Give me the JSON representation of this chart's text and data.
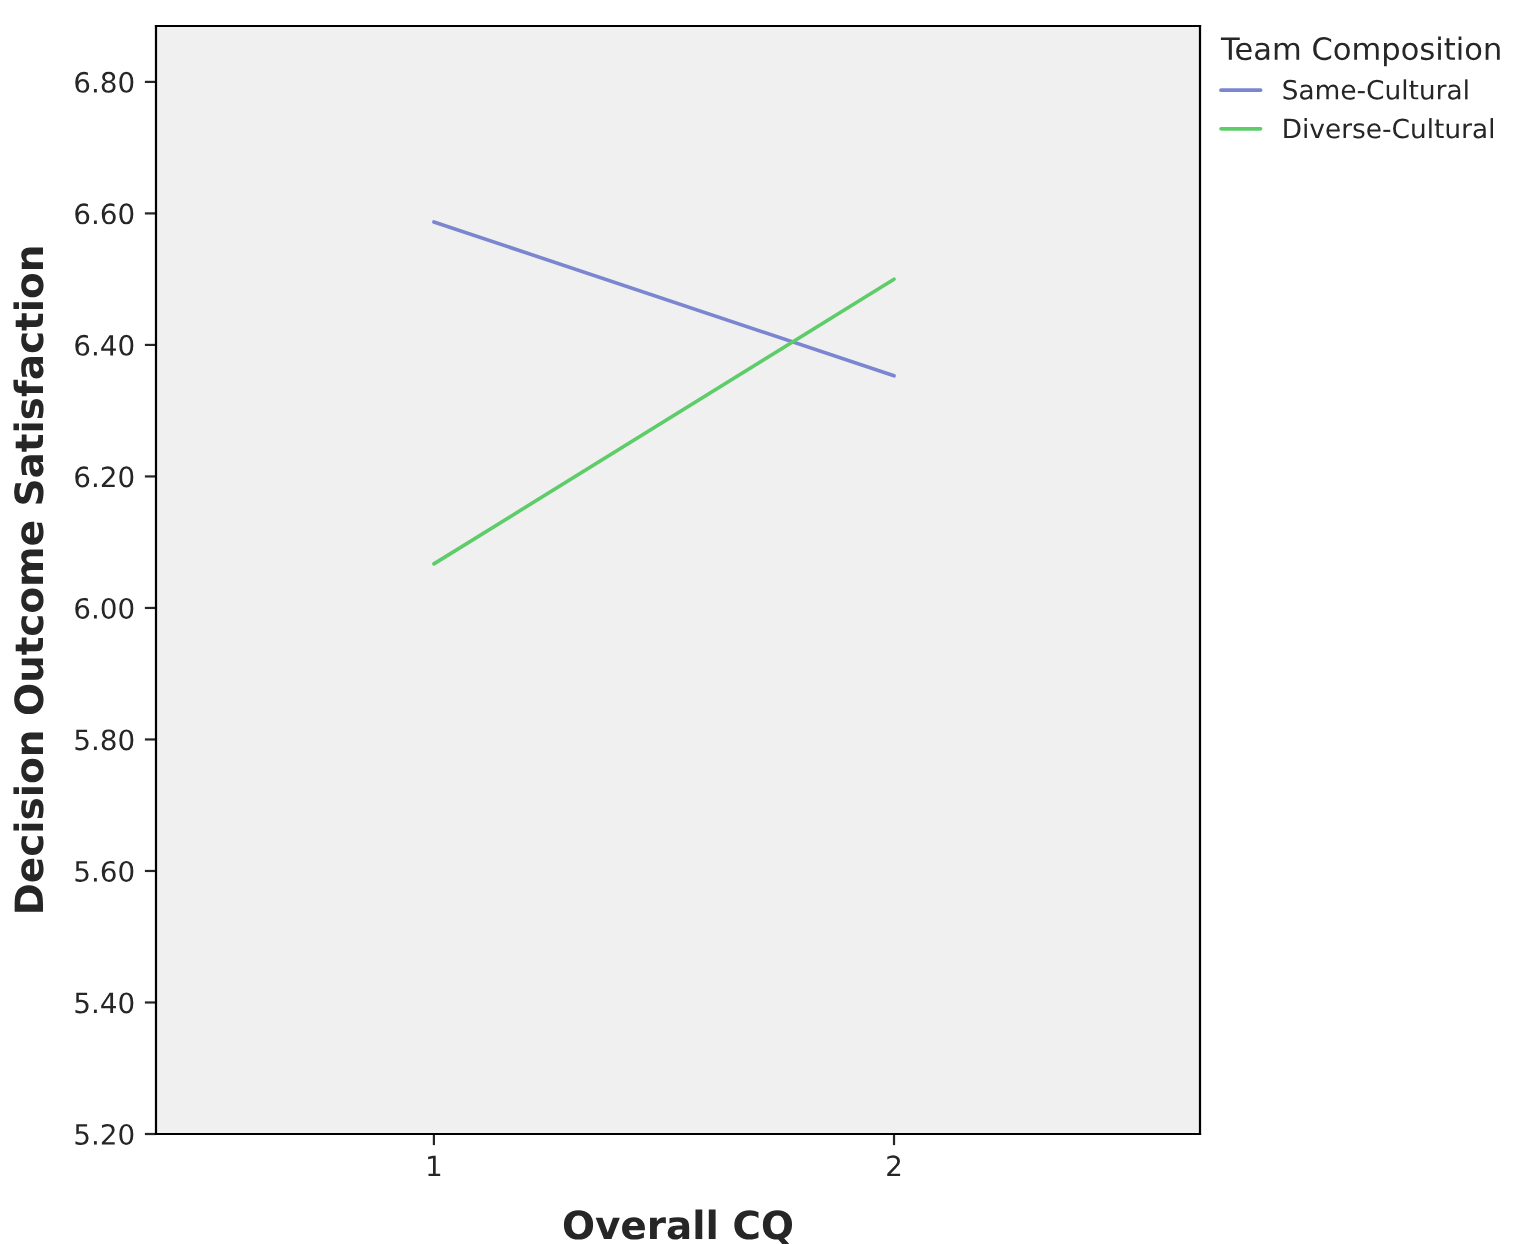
{
  "chart_data": {
    "type": "line",
    "xlabel": "Overall CQ",
    "ylabel": "Decision Outcome Satisfaction",
    "legend_title": "Team Composition",
    "categories": [
      "1",
      "2"
    ],
    "series": [
      {
        "name": "Same-Cultural",
        "color": "#7b86d0",
        "values": [
          6.587,
          6.353
        ]
      },
      {
        "name": "Diverse-Cultural",
        "color": "#5fcc6a",
        "values": [
          6.067,
          6.5
        ]
      }
    ],
    "ylim": [
      5.2,
      6.885
    ],
    "yticks": [
      {
        "value": 5.2,
        "label": "5.20"
      },
      {
        "value": 5.4,
        "label": "5.40"
      },
      {
        "value": 5.6,
        "label": "5.60"
      },
      {
        "value": 5.8,
        "label": "5.80"
      },
      {
        "value": 6.0,
        "label": "6.00"
      },
      {
        "value": 6.2,
        "label": "6.20"
      },
      {
        "value": 6.4,
        "label": "6.40"
      },
      {
        "value": 6.6,
        "label": "6.60"
      },
      {
        "value": 6.8,
        "label": "6.80"
      }
    ],
    "grid": false,
    "legend": "top right",
    "marker": "none",
    "line_style": "solid"
  }
}
